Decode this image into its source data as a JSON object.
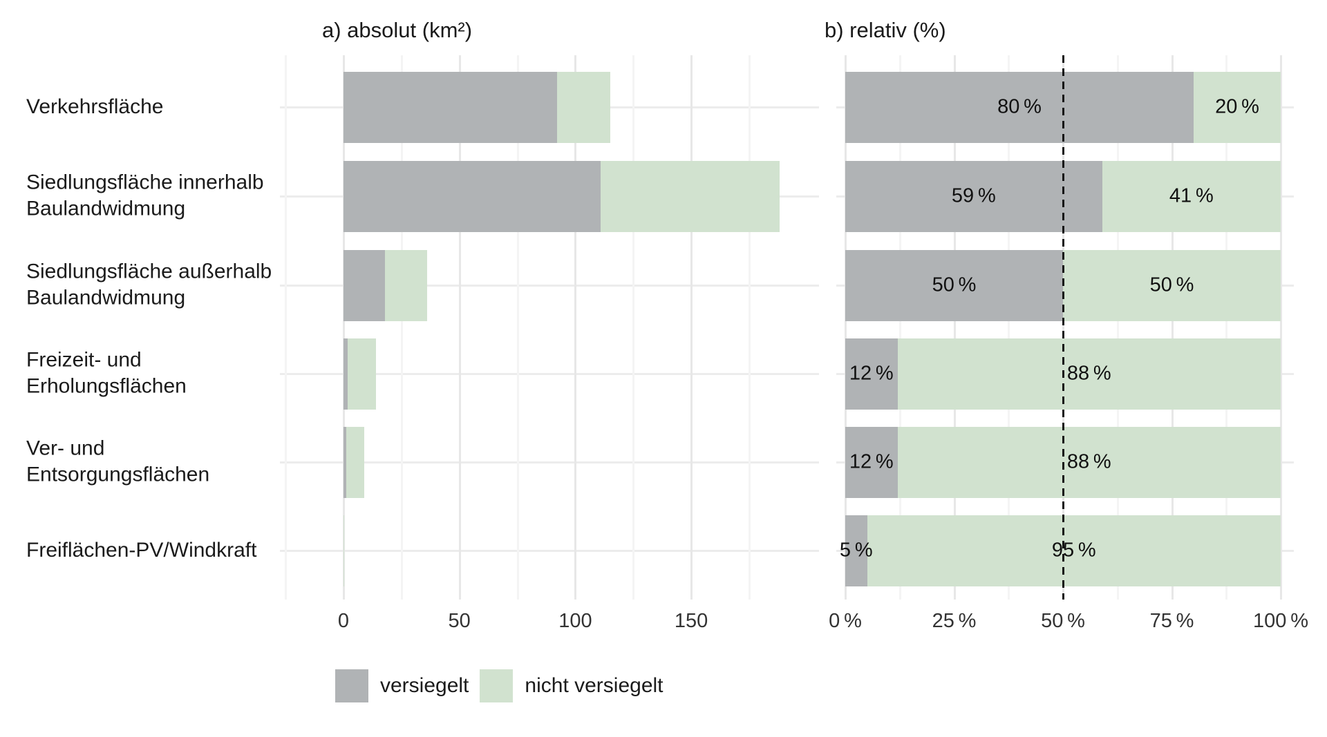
{
  "figure": {
    "panel_a_title": "a) absolut (km²)",
    "panel_b_title": "b) relativ (%)"
  },
  "colors": {
    "versiegelt": "#b0b3b5",
    "nicht_versiegelt": "#d1e2cf",
    "reference_line": "#141414"
  },
  "legend": {
    "items": [
      {
        "label": "versiegelt",
        "color": "#b0b3b5"
      },
      {
        "label": "nicht versiegelt",
        "color": "#d1e2cf"
      }
    ]
  },
  "categories": [
    "Verkehrsfläche",
    "Siedlungsfläche innerhalb\nBaulandwidmung",
    "Siedlungsfläche außerhalb\nBaulandwidmung",
    "Freizeit- und Erholungsflächen",
    "Ver- und Entsorgungsflächen",
    "Freiflächen-PV/Windkraft"
  ],
  "chart_data": [
    {
      "type": "bar",
      "panel": "a",
      "title": "a) absolut (km²)",
      "orientation": "horizontal",
      "stacked": true,
      "unit": "km²",
      "xlim": [
        0,
        200
      ],
      "xticks": [
        0,
        50,
        100,
        150
      ],
      "xtick_labels": [
        "0",
        "50",
        "100",
        "150"
      ],
      "grid": true,
      "categories": [
        "Verkehrsfläche",
        "Siedlungsfläche innerhalb Baulandwidmung",
        "Siedlungsfläche außerhalb Baulandwidmung",
        "Freizeit- und Erholungsflächen",
        "Ver- und Entsorgungsflächen",
        "Freiflächen-PV/Windkraft"
      ],
      "series": [
        {
          "name": "versiegelt",
          "values": [
            92,
            111,
            18,
            1.7,
            1.1,
            0.02
          ]
        },
        {
          "name": "nicht versiegelt",
          "values": [
            23,
            77,
            18,
            12.4,
            7.9,
            0.28
          ]
        }
      ],
      "bar_labels": false
    },
    {
      "type": "bar",
      "panel": "b",
      "title": "b) relativ (%)",
      "orientation": "horizontal",
      "stacked": true,
      "unit": "%",
      "xlim": [
        0,
        100
      ],
      "xticks": [
        0,
        25,
        50,
        75,
        100
      ],
      "xtick_labels": [
        "0 %",
        "25 %",
        "50 %",
        "75 %",
        "100 %"
      ],
      "grid": true,
      "reference_line_at": 50,
      "categories": [
        "Verkehrsfläche",
        "Siedlungsfläche innerhalb Baulandwidmung",
        "Siedlungsfläche außerhalb Baulandwidmung",
        "Freizeit- und Erholungsflächen",
        "Ver- und Entsorgungsflächen",
        "Freiflächen-PV/Windkraft"
      ],
      "series": [
        {
          "name": "versiegelt",
          "values": [
            80,
            59,
            50,
            12,
            12,
            5
          ]
        },
        {
          "name": "nicht versiegelt",
          "values": [
            20,
            41,
            50,
            88,
            88,
            95
          ]
        }
      ],
      "bar_labels": true,
      "label_suffix": " %"
    }
  ]
}
